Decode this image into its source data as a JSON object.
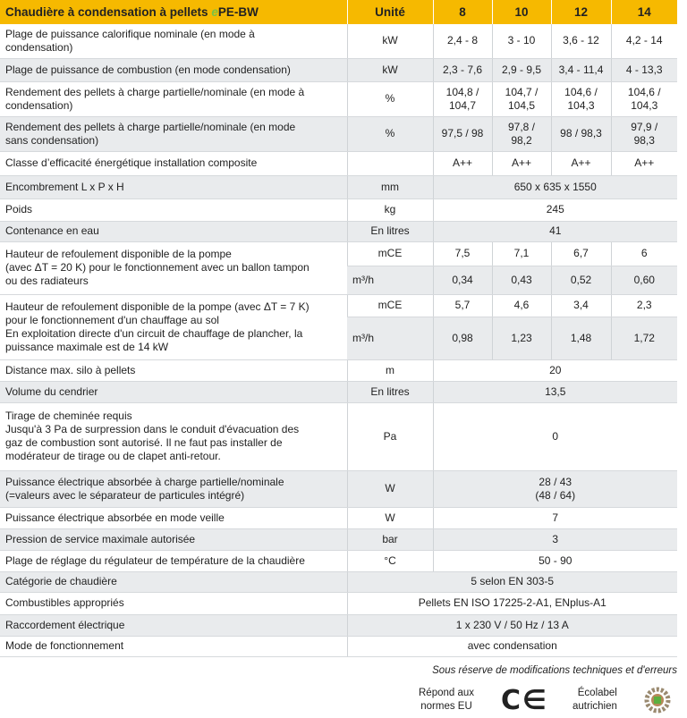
{
  "header": {
    "title_prefix": "Chaudière à condensation à pellets ",
    "title_e": "e",
    "title_suffix": "PE-BW",
    "unit": "Unité",
    "models": [
      "8",
      "10",
      "12",
      "14"
    ]
  },
  "rows": [
    {
      "label": "Plage de puissance calorifique nominale (en mode à\ncondensation)",
      "unit": "kW",
      "values": [
        "2,4 - 8",
        "3 - 10",
        "3,6 - 12",
        "4,2 - 14"
      ]
    },
    {
      "label": "Plage de puissance de combustion (en mode condensation)",
      "unit": "kW",
      "values": [
        "2,3 - 7,6",
        "2,9 - 9,5",
        "3,4 - 11,4",
        "4 - 13,3"
      ]
    },
    {
      "label": "Rendement des pellets à charge partielle/nominale (en mode à\ncondensation)",
      "unit": "%",
      "values": [
        "104,8 /\n104,7",
        "104,7 /\n104,5",
        "104,6 /\n104,3",
        "104,6 /\n104,3"
      ]
    },
    {
      "label": "Rendement des pellets à charge partielle/nominale (en mode\nsans condensation)",
      "unit": "%",
      "values": [
        "97,5 / 98",
        "97,8 /\n98,2",
        "98 / 98,3",
        "97,9 /\n98,3"
      ]
    },
    {
      "label": "Classe d’efficacité énergétique installation composite",
      "unit": "",
      "values": [
        "A++",
        "A++",
        "A++",
        "A++"
      ]
    },
    {
      "label": "Encombrement L x P x H",
      "unit": "mm",
      "value": "650 x 635 x 1550"
    },
    {
      "label": "Poids",
      "unit": "kg",
      "value": "245"
    },
    {
      "label": "Contenance en eau",
      "unit": "En litres",
      "value": "41"
    },
    {
      "label": "Hauteur de refoulement disponible de la pompe\n(avec ΔT = 20 K) pour le fonctionnement avec un ballon tampon\nou des radiateurs",
      "sub": [
        {
          "unit": "mCE",
          "values": [
            "7,5",
            "7,1",
            "6,7",
            "6"
          ]
        },
        {
          "unit": "m³/h",
          "values": [
            "0,34",
            "0,43",
            "0,52",
            "0,60"
          ]
        }
      ]
    },
    {
      "label": "Hauteur de refoulement disponible de la pompe (avec ΔT = 7 K)\npour le fonctionnement d'un chauffage au sol\nEn exploitation directe d'un circuit de chauffage de plancher, la\npuissance maximale est de 14 kW",
      "sub": [
        {
          "unit": "mCE",
          "values": [
            "5,7",
            "4,6",
            "3,4",
            "2,3"
          ]
        },
        {
          "unit": "m³/h",
          "values": [
            "0,98",
            "1,23",
            "1,48",
            "1,72"
          ]
        }
      ]
    },
    {
      "label": "Distance max. silo à pellets",
      "unit": "m",
      "value": "20"
    },
    {
      "label": "Volume du cendrier",
      "unit": "En litres",
      "value": "13,5"
    },
    {
      "label": "Tirage de cheminée requis\nJusqu'à 3 Pa de surpression dans le conduit d'évacuation des\ngaz de combustion sont autorisé. Il ne faut pas installer de\nmodérateur de tirage ou de clapet anti-retour.",
      "unit": "Pa",
      "value": "0"
    },
    {
      "label": "Puissance électrique absorbée à charge partielle/nominale\n(=valeurs avec le séparateur de particules intégré)",
      "unit": "W",
      "value": "28 / 43\n(48 / 64)"
    },
    {
      "label": "Puissance électrique absorbée en mode veille",
      "unit": "W",
      "value": "7"
    },
    {
      "label": "Pression de service maximale autorisée",
      "unit": "bar",
      "value": "3"
    },
    {
      "label": "Plage de réglage du régulateur de température de la chaudière",
      "unit": "°C",
      "value": "50 - 90"
    },
    {
      "label": "Catégorie de chaudière",
      "value": "5 selon EN 303-5"
    },
    {
      "label": "Combustibles appropriés",
      "value": "Pellets EN ISO 17225-2-A1, ENplus-A1"
    },
    {
      "label": "Raccordement électrique",
      "value": "1 x 230 V / 50 Hz / 13 A"
    },
    {
      "label": "Mode de fonctionnement",
      "value": "avec condensation"
    }
  ],
  "footer": {
    "note": "Sous réserve de modifications techniques et d'erreurs",
    "eu": "Répond aux\nnormes EU",
    "ce_logo": "CE",
    "ecolabel": "Écolabel\nautrichien"
  },
  "colors": {
    "header": "#f6b900",
    "accent_e": "#7cc242",
    "row_alt": "#e9ebed"
  }
}
